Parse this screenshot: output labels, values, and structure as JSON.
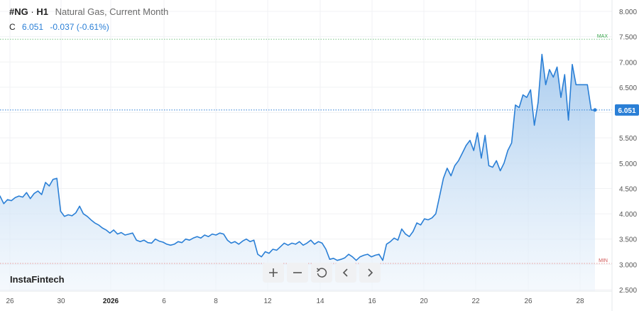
{
  "header": {
    "symbol": "#NG",
    "separator": "·",
    "timeframe": "H1",
    "instrument_name": "Natural Gas, Current Month",
    "close_label": "C",
    "close_value": "6.051",
    "change": "-0.037 (-0.61%)"
  },
  "brand": "InstaFintech",
  "toolbar": {
    "zoom_in_icon": "plus-icon",
    "zoom_out_icon": "minus-icon",
    "reset_icon": "reset-icon",
    "scroll_left_icon": "chevron-left-icon",
    "scroll_right_icon": "chevron-right-icon"
  },
  "colors": {
    "line": "#2a7fd6",
    "area_top": "#9cc4ec",
    "area_bottom": "#eef5fc",
    "max_line": "#7cc687",
    "min_line": "#e89a9a",
    "price_badge": "#2a7fd6"
  },
  "chart_data": {
    "type": "area",
    "title": "Natural Gas, Current Month",
    "xlabel": "",
    "ylabel": "",
    "ylim": [
      2.5,
      8.0
    ],
    "y_ticks": [
      "8.000",
      "7.500",
      "7.000",
      "6.500",
      "6.000",
      "5.500",
      "5.000",
      "4.500",
      "4.000",
      "3.500",
      "3.000",
      "2.500"
    ],
    "x_ticks": [
      "26",
      "30",
      "2026",
      "6",
      "8",
      "12",
      "14",
      "16",
      "20",
      "22",
      "26",
      "28"
    ],
    "max_label": "MAX",
    "max_value": 7.45,
    "min_label": "MIN",
    "min_value": 3.02,
    "current_price": "6.051",
    "current_value": 6.051,
    "series": [
      {
        "points": [
          [
            0,
            4.35
          ],
          [
            1,
            4.2
          ],
          [
            2,
            4.28
          ],
          [
            3,
            4.26
          ],
          [
            4,
            4.32
          ],
          [
            5,
            4.35
          ],
          [
            6,
            4.33
          ],
          [
            7,
            4.42
          ],
          [
            8,
            4.3
          ],
          [
            9,
            4.4
          ],
          [
            10,
            4.45
          ],
          [
            11,
            4.38
          ],
          [
            12,
            4.62
          ],
          [
            13,
            4.55
          ],
          [
            14,
            4.68
          ],
          [
            15,
            4.7
          ],
          [
            16,
            4.05
          ],
          [
            17,
            3.95
          ],
          [
            18,
            3.98
          ],
          [
            19,
            3.96
          ],
          [
            20,
            4.02
          ],
          [
            21,
            4.15
          ],
          [
            22,
            4.0
          ],
          [
            23,
            3.95
          ],
          [
            24,
            3.88
          ],
          [
            25,
            3.82
          ],
          [
            26,
            3.78
          ],
          [
            27,
            3.72
          ],
          [
            28,
            3.68
          ],
          [
            29,
            3.62
          ],
          [
            30,
            3.68
          ],
          [
            31,
            3.6
          ],
          [
            32,
            3.63
          ],
          [
            33,
            3.58
          ],
          [
            34,
            3.6
          ],
          [
            35,
            3.62
          ],
          [
            36,
            3.48
          ],
          [
            37,
            3.45
          ],
          [
            38,
            3.48
          ],
          [
            39,
            3.43
          ],
          [
            40,
            3.42
          ],
          [
            41,
            3.5
          ],
          [
            42,
            3.46
          ],
          [
            43,
            3.44
          ],
          [
            44,
            3.4
          ],
          [
            45,
            3.38
          ],
          [
            46,
            3.4
          ],
          [
            47,
            3.45
          ],
          [
            48,
            3.43
          ],
          [
            49,
            3.5
          ],
          [
            50,
            3.48
          ],
          [
            51,
            3.52
          ],
          [
            52,
            3.55
          ],
          [
            53,
            3.52
          ],
          [
            54,
            3.58
          ],
          [
            55,
            3.55
          ],
          [
            56,
            3.6
          ],
          [
            57,
            3.58
          ],
          [
            58,
            3.62
          ],
          [
            59,
            3.6
          ],
          [
            60,
            3.48
          ],
          [
            61,
            3.42
          ],
          [
            62,
            3.45
          ],
          [
            63,
            3.4
          ],
          [
            64,
            3.46
          ],
          [
            65,
            3.5
          ],
          [
            66,
            3.45
          ],
          [
            67,
            3.48
          ],
          [
            68,
            3.2
          ],
          [
            69,
            3.15
          ],
          [
            70,
            3.25
          ],
          [
            71,
            3.22
          ],
          [
            72,
            3.3
          ],
          [
            73,
            3.28
          ],
          [
            74,
            3.35
          ],
          [
            75,
            3.42
          ],
          [
            76,
            3.38
          ],
          [
            77,
            3.42
          ],
          [
            78,
            3.4
          ],
          [
            79,
            3.45
          ],
          [
            80,
            3.38
          ],
          [
            81,
            3.42
          ],
          [
            82,
            3.48
          ],
          [
            83,
            3.4
          ],
          [
            84,
            3.45
          ],
          [
            85,
            3.42
          ],
          [
            86,
            3.3
          ],
          [
            87,
            3.1
          ],
          [
            88,
            3.12
          ],
          [
            89,
            3.08
          ],
          [
            90,
            3.1
          ],
          [
            91,
            3.13
          ],
          [
            92,
            3.2
          ],
          [
            93,
            3.15
          ],
          [
            94,
            3.08
          ],
          [
            95,
            3.15
          ],
          [
            96,
            3.18
          ],
          [
            97,
            3.2
          ],
          [
            98,
            3.15
          ],
          [
            99,
            3.18
          ],
          [
            100,
            3.2
          ],
          [
            101,
            3.08
          ],
          [
            102,
            3.4
          ],
          [
            103,
            3.45
          ],
          [
            104,
            3.52
          ],
          [
            105,
            3.48
          ],
          [
            106,
            3.7
          ],
          [
            107,
            3.6
          ],
          [
            108,
            3.55
          ],
          [
            109,
            3.65
          ],
          [
            110,
            3.82
          ],
          [
            111,
            3.78
          ],
          [
            112,
            3.9
          ],
          [
            113,
            3.88
          ],
          [
            114,
            3.92
          ],
          [
            115,
            4.0
          ],
          [
            116,
            4.35
          ],
          [
            117,
            4.7
          ],
          [
            118,
            4.9
          ],
          [
            119,
            4.75
          ],
          [
            120,
            4.95
          ],
          [
            121,
            5.05
          ],
          [
            122,
            5.2
          ],
          [
            123,
            5.35
          ],
          [
            124,
            5.45
          ],
          [
            125,
            5.25
          ],
          [
            126,
            5.6
          ],
          [
            127,
            5.1
          ],
          [
            128,
            5.55
          ],
          [
            129,
            4.95
          ],
          [
            130,
            4.92
          ],
          [
            131,
            5.05
          ],
          [
            132,
            4.85
          ],
          [
            133,
            5.0
          ],
          [
            134,
            5.25
          ],
          [
            135,
            5.4
          ],
          [
            136,
            6.15
          ],
          [
            137,
            6.1
          ],
          [
            138,
            6.35
          ],
          [
            139,
            6.3
          ],
          [
            140,
            6.45
          ],
          [
            141,
            5.75
          ],
          [
            142,
            6.2
          ],
          [
            143,
            7.15
          ],
          [
            144,
            6.55
          ],
          [
            145,
            6.85
          ],
          [
            146,
            6.7
          ],
          [
            147,
            6.9
          ],
          [
            148,
            6.3
          ],
          [
            149,
            6.75
          ],
          [
            150,
            5.85
          ],
          [
            151,
            6.95
          ],
          [
            152,
            6.55
          ],
          [
            153,
            6.55
          ],
          [
            154,
            6.55
          ],
          [
            155,
            6.55
          ],
          [
            156,
            6.05
          ],
          [
            157,
            6.051
          ]
        ]
      }
    ]
  }
}
